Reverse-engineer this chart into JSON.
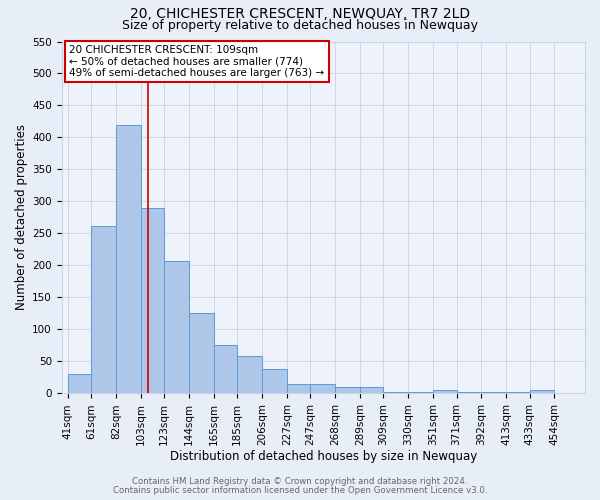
{
  "title": "20, CHICHESTER CRESCENT, NEWQUAY, TR7 2LD",
  "subtitle": "Size of property relative to detached houses in Newquay",
  "xlabel": "Distribution of detached houses by size in Newquay",
  "ylabel": "Number of detached properties",
  "bar_left_edges": [
    41,
    61,
    82,
    103,
    123,
    144,
    165,
    185,
    206,
    227,
    247,
    268,
    289,
    309,
    330,
    351,
    371,
    392,
    413,
    433
  ],
  "bar_widths": [
    20,
    21,
    21,
    20,
    21,
    21,
    20,
    21,
    21,
    20,
    21,
    21,
    20,
    21,
    21,
    20,
    21,
    21,
    20,
    21
  ],
  "bar_heights": [
    30,
    262,
    420,
    290,
    207,
    125,
    75,
    58,
    38,
    15,
    15,
    10,
    10,
    3,
    3,
    5,
    3,
    3,
    3,
    5
  ],
  "bar_color": "#aec6e8",
  "bar_edgecolor": "#5b9bd5",
  "bar_linewidth": 0.7,
  "vline_x": 109,
  "vline_color": "#cc0000",
  "vline_linewidth": 1.2,
  "ylim": [
    0,
    550
  ],
  "yticks": [
    0,
    50,
    100,
    150,
    200,
    250,
    300,
    350,
    400,
    450,
    500,
    550
  ],
  "xtick_labels": [
    "41sqm",
    "61sqm",
    "82sqm",
    "103sqm",
    "123sqm",
    "144sqm",
    "165sqm",
    "185sqm",
    "206sqm",
    "227sqm",
    "247sqm",
    "268sqm",
    "289sqm",
    "309sqm",
    "330sqm",
    "351sqm",
    "371sqm",
    "392sqm",
    "413sqm",
    "433sqm",
    "454sqm"
  ],
  "xtick_positions": [
    41,
    61,
    82,
    103,
    123,
    144,
    165,
    185,
    206,
    227,
    247,
    268,
    289,
    309,
    330,
    351,
    371,
    392,
    413,
    433,
    454
  ],
  "grid_color": "#c8d4e8",
  "bg_color": "#e8eef8",
  "plot_bg_color": "#eef2fa",
  "annotation_line1": "20 CHICHESTER CRESCENT: 109sqm",
  "annotation_line2": "← 50% of detached houses are smaller (774)",
  "annotation_line3": "49% of semi-detached houses are larger (763) →",
  "annotation_box_edgecolor": "#cc0000",
  "annotation_fontsize": 7.5,
  "footer_line1": "Contains HM Land Registry data © Crown copyright and database right 2024.",
  "footer_line2": "Contains public sector information licensed under the Open Government Licence v3.0.",
  "title_fontsize": 10,
  "subtitle_fontsize": 9,
  "axis_label_fontsize": 8.5,
  "tick_fontsize": 7.5
}
